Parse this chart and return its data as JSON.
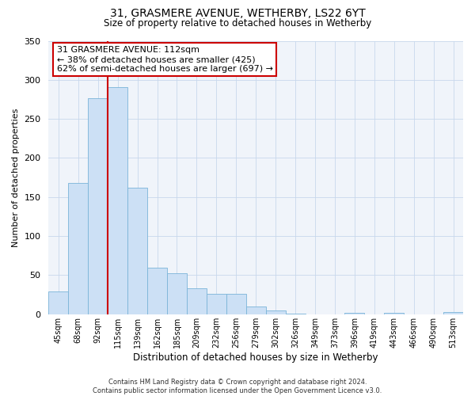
{
  "title": "31, GRASMERE AVENUE, WETHERBY, LS22 6YT",
  "subtitle": "Size of property relative to detached houses in Wetherby",
  "xlabel": "Distribution of detached houses by size in Wetherby",
  "ylabel": "Number of detached properties",
  "bin_labels": [
    "45sqm",
    "68sqm",
    "92sqm",
    "115sqm",
    "139sqm",
    "162sqm",
    "185sqm",
    "209sqm",
    "232sqm",
    "256sqm",
    "279sqm",
    "302sqm",
    "326sqm",
    "349sqm",
    "373sqm",
    "396sqm",
    "419sqm",
    "443sqm",
    "466sqm",
    "490sqm",
    "513sqm"
  ],
  "bar_heights": [
    29,
    168,
    277,
    291,
    162,
    60,
    52,
    33,
    26,
    26,
    10,
    5,
    1,
    0,
    0,
    2,
    0,
    2,
    0,
    0,
    3
  ],
  "bar_color": "#cce0f5",
  "bar_edge_color": "#7ab4d8",
  "property_line_color": "#cc0000",
  "property_line_index": 3,
  "ylim": [
    0,
    350
  ],
  "yticks": [
    0,
    50,
    100,
    150,
    200,
    250,
    300,
    350
  ],
  "annotation_title": "31 GRASMERE AVENUE: 112sqm",
  "annotation_line1": "← 38% of detached houses are smaller (425)",
  "annotation_line2": "62% of semi-detached houses are larger (697) →",
  "annotation_box_color": "#ffffff",
  "annotation_box_edge": "#cc0000",
  "bg_color": "#f0f4fa",
  "footer1": "Contains HM Land Registry data © Crown copyright and database right 2024.",
  "footer2": "Contains public sector information licensed under the Open Government Licence v3.0."
}
